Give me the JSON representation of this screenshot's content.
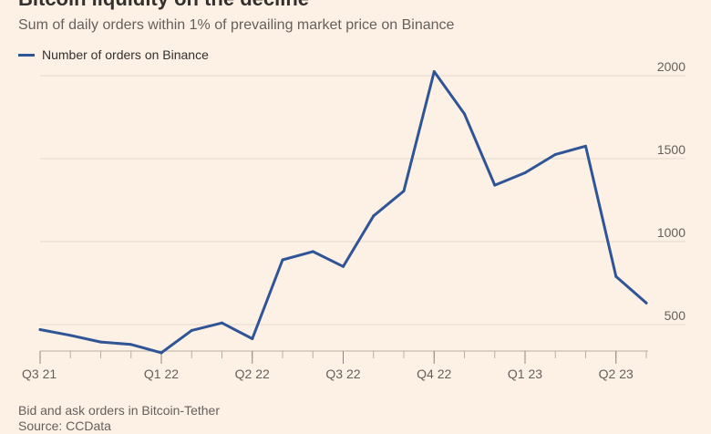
{
  "chart_data": {
    "type": "line",
    "title": "Bitcoin liquidity on the decline",
    "subtitle": "Sum of daily orders within 1% of prevailing market price on Binance",
    "xlabel": "",
    "ylabel": "",
    "ylim": [
      340,
      2030
    ],
    "yticks": [
      500,
      1000,
      1500,
      2000
    ],
    "xtick_labels": [
      "Q3 21",
      "Q1 22",
      "Q2 22",
      "Q3 22",
      "Q4 22",
      "Q1 23",
      "Q2 23"
    ],
    "grid": true,
    "legend_position": "top-left",
    "series": [
      {
        "name": "Number of orders on Binance",
        "color": "#2f5596",
        "values": [
          470,
          435,
          395,
          380,
          330,
          465,
          510,
          415,
          890,
          940,
          850,
          1155,
          1305,
          2025,
          1770,
          1340,
          1415,
          1525,
          1575,
          790,
          630
        ]
      }
    ],
    "source_notes": [
      "Bid and ask orders in Bitcoin-Tether",
      "Source: CCData"
    ]
  }
}
